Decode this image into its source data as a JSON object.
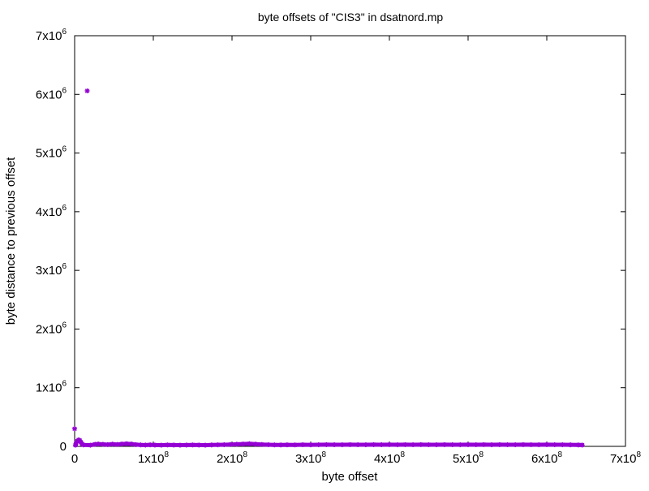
{
  "chart_data": {
    "type": "scatter",
    "title": "byte offsets of \"CIS3\" in dsatnord.mp",
    "xlabel": "byte offset",
    "ylabel": "byte distance to previous offset",
    "xlim": [
      0,
      700000000
    ],
    "ylim": [
      0,
      7000000
    ],
    "x_ticks": [
      {
        "value": 0,
        "base": "0",
        "exp": ""
      },
      {
        "value": 100000000,
        "base": "1x10",
        "exp": "8"
      },
      {
        "value": 200000000,
        "base": "2x10",
        "exp": "8"
      },
      {
        "value": 300000000,
        "base": "3x10",
        "exp": "8"
      },
      {
        "value": 400000000,
        "base": "4x10",
        "exp": "8"
      },
      {
        "value": 500000000,
        "base": "5x10",
        "exp": "8"
      },
      {
        "value": 600000000,
        "base": "6x10",
        "exp": "8"
      },
      {
        "value": 700000000,
        "base": "7x10",
        "exp": "8"
      }
    ],
    "y_ticks": [
      {
        "value": 0,
        "base": "0",
        "exp": ""
      },
      {
        "value": 1000000,
        "base": "1x10",
        "exp": "6"
      },
      {
        "value": 2000000,
        "base": "2x10",
        "exp": "6"
      },
      {
        "value": 3000000,
        "base": "3x10",
        "exp": "6"
      },
      {
        "value": 4000000,
        "base": "4x10",
        "exp": "6"
      },
      {
        "value": 5000000,
        "base": "5x10",
        "exp": "6"
      },
      {
        "value": 6000000,
        "base": "6x10",
        "exp": "6"
      },
      {
        "value": 7000000,
        "base": "7x10",
        "exp": "6"
      }
    ],
    "grid": false,
    "legend": "none",
    "series": [
      {
        "color": "#9400d3",
        "marker": "star",
        "points": [
          [
            0,
            300000
          ],
          [
            1000000,
            20000
          ],
          [
            2000000,
            60000
          ],
          [
            3500000,
            90000
          ],
          [
            5000000,
            110000
          ],
          [
            6500000,
            100000
          ],
          [
            8000000,
            70000
          ],
          [
            9500000,
            40000
          ],
          [
            11000000,
            25000
          ],
          [
            16000000,
            6060000
          ],
          [
            20000000,
            20000
          ],
          [
            26000000,
            35000
          ],
          [
            30000000,
            40000
          ],
          [
            36000000,
            35000
          ],
          [
            42000000,
            30000
          ],
          [
            48000000,
            38000
          ],
          [
            54000000,
            32000
          ],
          [
            60000000,
            40000
          ],
          [
            66000000,
            45000
          ],
          [
            72000000,
            40000
          ],
          [
            78000000,
            30000
          ],
          [
            84000000,
            25000
          ],
          [
            90000000,
            22000
          ],
          [
            96000000,
            26000
          ],
          [
            102000000,
            22000
          ],
          [
            110000000,
            20000
          ],
          [
            118000000,
            24000
          ],
          [
            126000000,
            22000
          ],
          [
            134000000,
            20000
          ],
          [
            142000000,
            22000
          ],
          [
            150000000,
            24000
          ],
          [
            158000000,
            22000
          ],
          [
            166000000,
            20000
          ],
          [
            174000000,
            24000
          ],
          [
            182000000,
            26000
          ],
          [
            190000000,
            28000
          ],
          [
            198000000,
            32000
          ],
          [
            206000000,
            36000
          ],
          [
            214000000,
            40000
          ],
          [
            222000000,
            45000
          ],
          [
            230000000,
            38000
          ],
          [
            238000000,
            32000
          ],
          [
            246000000,
            28000
          ],
          [
            254000000,
            25000
          ],
          [
            262000000,
            24000
          ],
          [
            270000000,
            26000
          ],
          [
            280000000,
            25000
          ],
          [
            290000000,
            28000
          ],
          [
            300000000,
            26000
          ],
          [
            310000000,
            27000
          ],
          [
            320000000,
            29000
          ],
          [
            330000000,
            28000
          ],
          [
            340000000,
            27000
          ],
          [
            350000000,
            29000
          ],
          [
            360000000,
            28000
          ],
          [
            370000000,
            27000
          ],
          [
            380000000,
            29000
          ],
          [
            390000000,
            28000
          ],
          [
            400000000,
            30000
          ],
          [
            410000000,
            27000
          ],
          [
            420000000,
            29000
          ],
          [
            430000000,
            28000
          ],
          [
            440000000,
            30000
          ],
          [
            450000000,
            28000
          ],
          [
            460000000,
            27000
          ],
          [
            470000000,
            29000
          ],
          [
            480000000,
            28000
          ],
          [
            490000000,
            27000
          ],
          [
            500000000,
            29000
          ],
          [
            510000000,
            28000
          ],
          [
            520000000,
            30000
          ],
          [
            530000000,
            27000
          ],
          [
            540000000,
            29000
          ],
          [
            550000000,
            28000
          ],
          [
            560000000,
            27000
          ],
          [
            570000000,
            29000
          ],
          [
            580000000,
            28000
          ],
          [
            590000000,
            27000
          ],
          [
            600000000,
            29000
          ],
          [
            610000000,
            28000
          ],
          [
            620000000,
            27000
          ],
          [
            630000000,
            26000
          ],
          [
            640000000,
            24000
          ],
          [
            645000000,
            22000
          ]
        ]
      }
    ]
  }
}
